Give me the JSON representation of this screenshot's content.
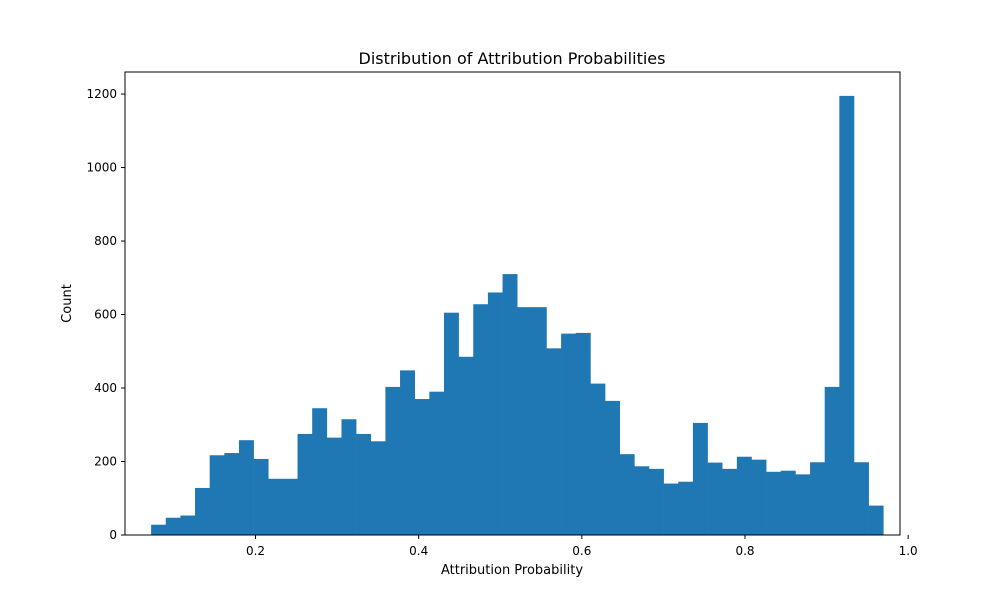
{
  "chart_data": {
    "type": "bar",
    "title": "Distribution of Attribution Probabilities",
    "xlabel": "Attribution Probability",
    "ylabel": "Count",
    "xlim": [
      0.04,
      0.99
    ],
    "ylim": [
      0,
      1260
    ],
    "xticks": [
      0.2,
      0.4,
      0.6,
      0.8,
      1.0
    ],
    "xtick_labels": [
      "0.2",
      "0.4",
      "0.6",
      "0.8",
      "1.0"
    ],
    "yticks": [
      0,
      200,
      400,
      600,
      800,
      1000,
      1200
    ],
    "ytick_labels": [
      "0",
      "200",
      "400",
      "600",
      "800",
      "1000",
      "1200"
    ],
    "bin_start": 0.072,
    "bin_width": 0.01795,
    "values": [
      28,
      47,
      53,
      128,
      217,
      223,
      258,
      207,
      153,
      153,
      275,
      345,
      265,
      315,
      275,
      255,
      403,
      448,
      370,
      390,
      605,
      485,
      628,
      660,
      710,
      620,
      620,
      508,
      548,
      550,
      412,
      365,
      220,
      187,
      180,
      140,
      145,
      305,
      197,
      180,
      213,
      205,
      172,
      175,
      165,
      198,
      403,
      1195,
      198,
      80
    ],
    "color": "#1f77b4",
    "grid": false
  }
}
